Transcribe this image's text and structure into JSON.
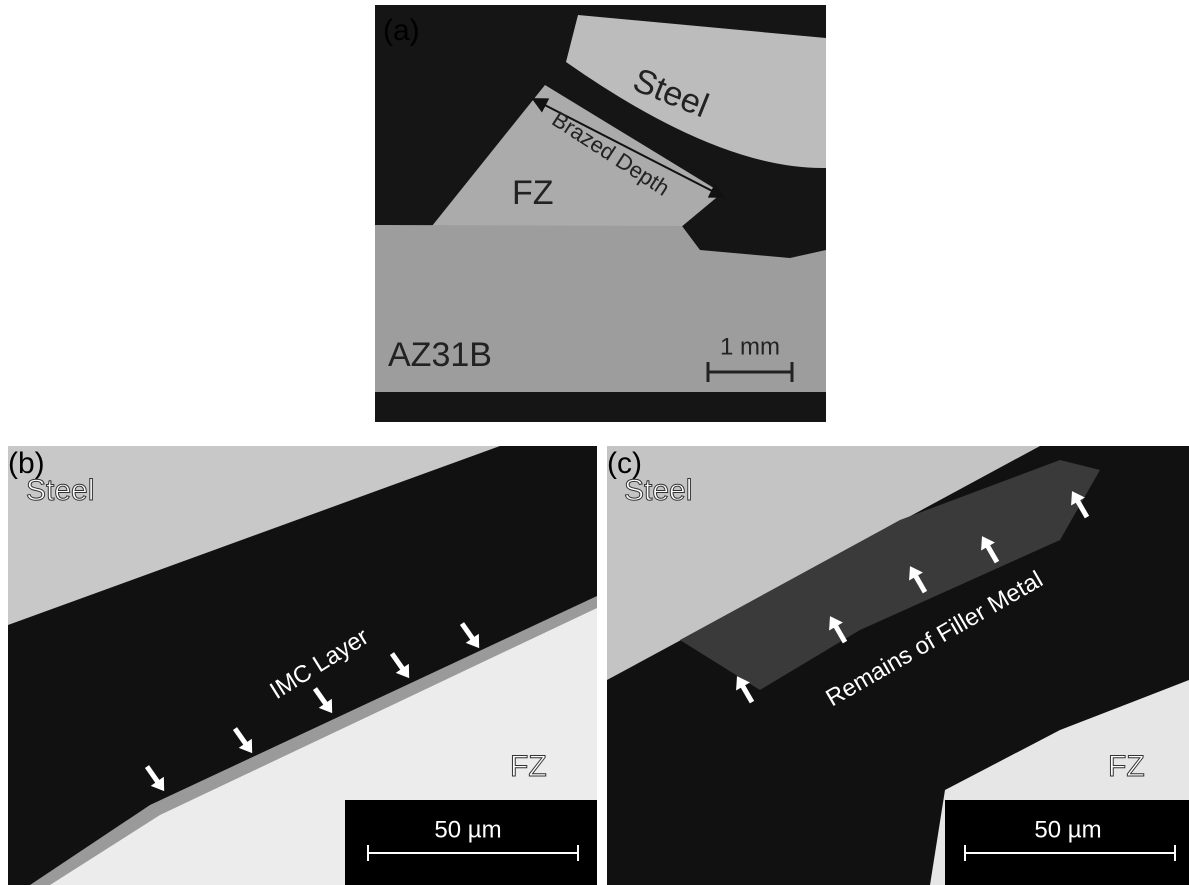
{
  "panels": [
    {
      "label": "(a)",
      "steel": "Steel",
      "annotation": "Brazed Depth",
      "fz": "FZ",
      "base": "AZ31B",
      "scale_bar": "1 mm"
    },
    {
      "label": "(b)",
      "steel": "Steel",
      "annotation": "IMC Layer",
      "fz": "FZ",
      "scale_bar": "50 µm"
    },
    {
      "label": "(c)",
      "steel": "Steel",
      "annotation": "Remains of Filler Metal",
      "fz": "FZ",
      "scale_bar": "50 µm"
    }
  ]
}
